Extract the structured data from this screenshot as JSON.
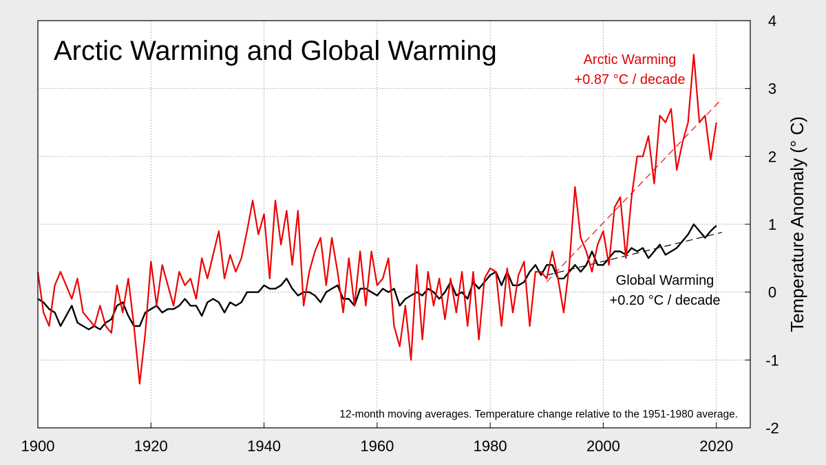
{
  "chart_data": {
    "type": "line",
    "title": "Arctic Warming and Global Warming",
    "ylabel": "Temperature Anomaly (° C)",
    "xlim": [
      1900,
      2026
    ],
    "ylim": [
      -2,
      4
    ],
    "x_ticks": [
      "1900",
      "1920",
      "1940",
      "1960",
      "1980",
      "2000",
      "2020"
    ],
    "y_ticks": [
      "4",
      "3",
      "2",
      "1",
      "0",
      "-1",
      "-2"
    ],
    "grid": true,
    "note": "12-month moving averages.  Temperature change relative to the 1951-1980 average.",
    "colors": {
      "background": "#ececec",
      "arctic": "#ee0000",
      "global": "#000000",
      "grid": "#b4b4b4"
    },
    "series": [
      {
        "name": "Arctic Warming",
        "annotation_lines": [
          "Arctic Warming",
          "+0.87 °C / decade"
        ],
        "trend_per_decade": 0.87,
        "trend_line": {
          "x": [
            1990,
            2021
          ],
          "y": [
            0.15,
            2.85
          ]
        },
        "x": [
          1900,
          1901,
          1902,
          1903,
          1904,
          1905,
          1906,
          1907,
          1908,
          1909,
          1910,
          1911,
          1912,
          1913,
          1914,
          1915,
          1916,
          1917,
          1918,
          1919,
          1920,
          1921,
          1922,
          1923,
          1924,
          1925,
          1926,
          1927,
          1928,
          1929,
          1930,
          1931,
          1932,
          1933,
          1934,
          1935,
          1936,
          1937,
          1938,
          1939,
          1940,
          1941,
          1942,
          1943,
          1944,
          1945,
          1946,
          1947,
          1948,
          1949,
          1950,
          1951,
          1952,
          1953,
          1954,
          1955,
          1956,
          1957,
          1958,
          1959,
          1960,
          1961,
          1962,
          1963,
          1964,
          1965,
          1966,
          1967,
          1968,
          1969,
          1970,
          1971,
          1972,
          1973,
          1974,
          1975,
          1976,
          1977,
          1978,
          1979,
          1980,
          1981,
          1982,
          1983,
          1984,
          1985,
          1986,
          1987,
          1988,
          1989,
          1990,
          1991,
          1992,
          1993,
          1994,
          1995,
          1996,
          1997,
          1998,
          1999,
          2000,
          2001,
          2002,
          2003,
          2004,
          2005,
          2006,
          2007,
          2008,
          2009,
          2010,
          2011,
          2012,
          2013,
          2014,
          2015,
          2016,
          2017,
          2018,
          2019,
          2020
        ],
        "values": [
          0.3,
          -0.3,
          -0.5,
          0.1,
          0.3,
          0.1,
          -0.1,
          0.2,
          -0.3,
          -0.4,
          -0.5,
          -0.2,
          -0.5,
          -0.6,
          0.1,
          -0.3,
          0.2,
          -0.5,
          -1.35,
          -0.6,
          0.45,
          -0.2,
          0.4,
          0.1,
          -0.2,
          0.3,
          0.1,
          0.2,
          -0.1,
          0.5,
          0.2,
          0.55,
          0.9,
          0.2,
          0.55,
          0.3,
          0.5,
          0.9,
          1.35,
          0.85,
          1.15,
          0.2,
          1.35,
          0.7,
          1.2,
          0.4,
          1.2,
          -0.2,
          0.3,
          0.6,
          0.8,
          0.1,
          0.8,
          0.3,
          -0.3,
          0.5,
          -0.2,
          0.6,
          -0.2,
          0.6,
          0.1,
          0.2,
          0.5,
          -0.5,
          -0.8,
          -0.2,
          -1.0,
          0.4,
          -0.7,
          0.3,
          -0.2,
          0.2,
          -0.4,
          0.2,
          -0.3,
          0.3,
          -0.5,
          0.3,
          -0.7,
          0.2,
          0.35,
          0.3,
          -0.5,
          0.35,
          -0.3,
          0.25,
          0.45,
          -0.5,
          0.3,
          0.3,
          0.2,
          0.6,
          0.2,
          -0.3,
          0.4,
          1.55,
          0.8,
          0.6,
          0.3,
          0.7,
          0.9,
          0.4,
          1.25,
          1.4,
          0.5,
          1.4,
          2.0,
          2.0,
          2.3,
          1.6,
          2.6,
          2.5,
          2.7,
          1.8,
          2.2,
          2.5,
          3.5,
          2.5,
          2.6,
          1.95,
          2.5
        ]
      },
      {
        "name": "Global Warming",
        "annotation_lines": [
          "Global Warming",
          "+0.20 °C / decade"
        ],
        "trend_per_decade": 0.2,
        "trend_line": {
          "x": [
            1990,
            2021
          ],
          "y": [
            0.25,
            0.88
          ]
        },
        "x": [
          1900,
          1901,
          1902,
          1903,
          1904,
          1905,
          1906,
          1907,
          1908,
          1909,
          1910,
          1911,
          1912,
          1913,
          1914,
          1915,
          1916,
          1917,
          1918,
          1919,
          1920,
          1921,
          1922,
          1923,
          1924,
          1925,
          1926,
          1927,
          1928,
          1929,
          1930,
          1931,
          1932,
          1933,
          1934,
          1935,
          1936,
          1937,
          1938,
          1939,
          1940,
          1941,
          1942,
          1943,
          1944,
          1945,
          1946,
          1947,
          1948,
          1949,
          1950,
          1951,
          1952,
          1953,
          1954,
          1955,
          1956,
          1957,
          1958,
          1959,
          1960,
          1961,
          1962,
          1963,
          1964,
          1965,
          1966,
          1967,
          1968,
          1969,
          1970,
          1971,
          1972,
          1973,
          1974,
          1975,
          1976,
          1977,
          1978,
          1979,
          1980,
          1981,
          1982,
          1983,
          1984,
          1985,
          1986,
          1987,
          1988,
          1989,
          1990,
          1991,
          1992,
          1993,
          1994,
          1995,
          1996,
          1997,
          1998,
          1999,
          2000,
          2001,
          2002,
          2003,
          2004,
          2005,
          2006,
          2007,
          2008,
          2009,
          2010,
          2011,
          2012,
          2013,
          2014,
          2015,
          2016,
          2017,
          2018,
          2019,
          2020
        ],
        "values": [
          -0.1,
          -0.15,
          -0.25,
          -0.3,
          -0.5,
          -0.35,
          -0.2,
          -0.45,
          -0.5,
          -0.55,
          -0.5,
          -0.55,
          -0.45,
          -0.4,
          -0.2,
          -0.15,
          -0.35,
          -0.5,
          -0.5,
          -0.3,
          -0.25,
          -0.2,
          -0.3,
          -0.25,
          -0.25,
          -0.2,
          -0.1,
          -0.2,
          -0.2,
          -0.35,
          -0.15,
          -0.1,
          -0.15,
          -0.3,
          -0.15,
          -0.2,
          -0.15,
          0.0,
          0.0,
          0.0,
          0.1,
          0.05,
          0.05,
          0.1,
          0.2,
          0.05,
          -0.05,
          0.0,
          0.0,
          -0.05,
          -0.15,
          0.0,
          0.05,
          0.1,
          -0.1,
          -0.1,
          -0.2,
          0.05,
          0.05,
          0.0,
          -0.05,
          0.05,
          0.0,
          0.05,
          -0.2,
          -0.1,
          -0.05,
          0.0,
          -0.05,
          0.05,
          0.0,
          -0.1,
          0.0,
          0.15,
          -0.05,
          0.0,
          -0.1,
          0.15,
          0.05,
          0.15,
          0.25,
          0.3,
          0.1,
          0.3,
          0.1,
          0.1,
          0.15,
          0.3,
          0.4,
          0.25,
          0.4,
          0.4,
          0.2,
          0.2,
          0.3,
          0.4,
          0.3,
          0.4,
          0.6,
          0.4,
          0.4,
          0.5,
          0.6,
          0.6,
          0.55,
          0.65,
          0.6,
          0.65,
          0.5,
          0.6,
          0.7,
          0.55,
          0.6,
          0.65,
          0.75,
          0.85,
          1.0,
          0.9,
          0.8,
          0.9,
          0.98
        ]
      }
    ]
  }
}
